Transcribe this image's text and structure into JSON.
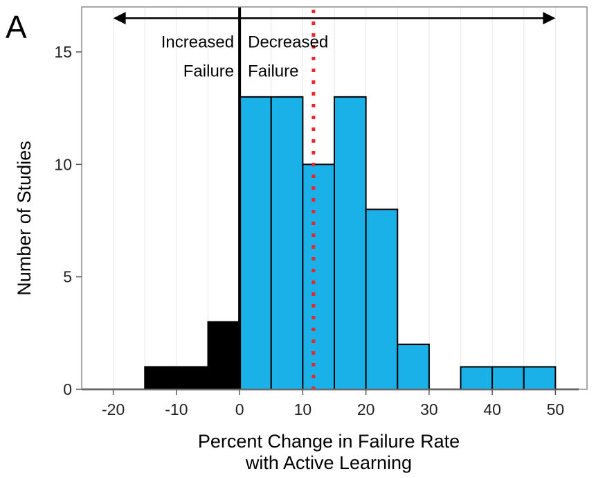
{
  "chart_data": {
    "type": "bar",
    "panel_label": "A",
    "title": "",
    "xlabel_line1": "Percent Change in Failure Rate",
    "xlabel_line2": "with Active Learning",
    "ylabel": "Number of Studies",
    "xlim": [
      -25,
      55
    ],
    "ylim": [
      0,
      17
    ],
    "x_ticks": [
      -20,
      -10,
      0,
      10,
      20,
      30,
      40,
      50
    ],
    "y_ticks": [
      0,
      5,
      10,
      15
    ],
    "bin_width": 5,
    "bins": [
      {
        "x_start": -15,
        "x_end": -10,
        "count": 1,
        "group": "increased"
      },
      {
        "x_start": -10,
        "x_end": -5,
        "count": 1,
        "group": "increased"
      },
      {
        "x_start": -5,
        "x_end": 0,
        "count": 3,
        "group": "increased"
      },
      {
        "x_start": 0,
        "x_end": 5,
        "count": 13,
        "group": "decreased"
      },
      {
        "x_start": 5,
        "x_end": 10,
        "count": 13,
        "group": "decreased"
      },
      {
        "x_start": 10,
        "x_end": 15,
        "count": 10,
        "group": "decreased"
      },
      {
        "x_start": 15,
        "x_end": 20,
        "count": 13,
        "group": "decreased"
      },
      {
        "x_start": 20,
        "x_end": 25,
        "count": 8,
        "group": "decreased"
      },
      {
        "x_start": 25,
        "x_end": 30,
        "count": 2,
        "group": "decreased"
      },
      {
        "x_start": 30,
        "x_end": 35,
        "count": 0,
        "group": "decreased"
      },
      {
        "x_start": 35,
        "x_end": 40,
        "count": 1,
        "group": "decreased"
      },
      {
        "x_start": 40,
        "x_end": 45,
        "count": 1,
        "group": "decreased"
      },
      {
        "x_start": 45,
        "x_end": 50,
        "count": 1,
        "group": "decreased"
      }
    ],
    "colors": {
      "increased": "#000000",
      "decreased": "#1ab0e8",
      "mean_line": "#e8262b",
      "grid": "#e6e6e6",
      "frame": "#8c8c8c"
    },
    "zero_line_x": 0,
    "mean_line_x": 11.7,
    "arrow": {
      "x_from": -20,
      "x_to": 50,
      "y": 16.5
    },
    "annotations": {
      "increased_line1": "Increased",
      "increased_line2": "Failure",
      "decreased_line1": "Decreased",
      "decreased_line2": "Failure"
    },
    "grid": true,
    "legend": "none"
  }
}
